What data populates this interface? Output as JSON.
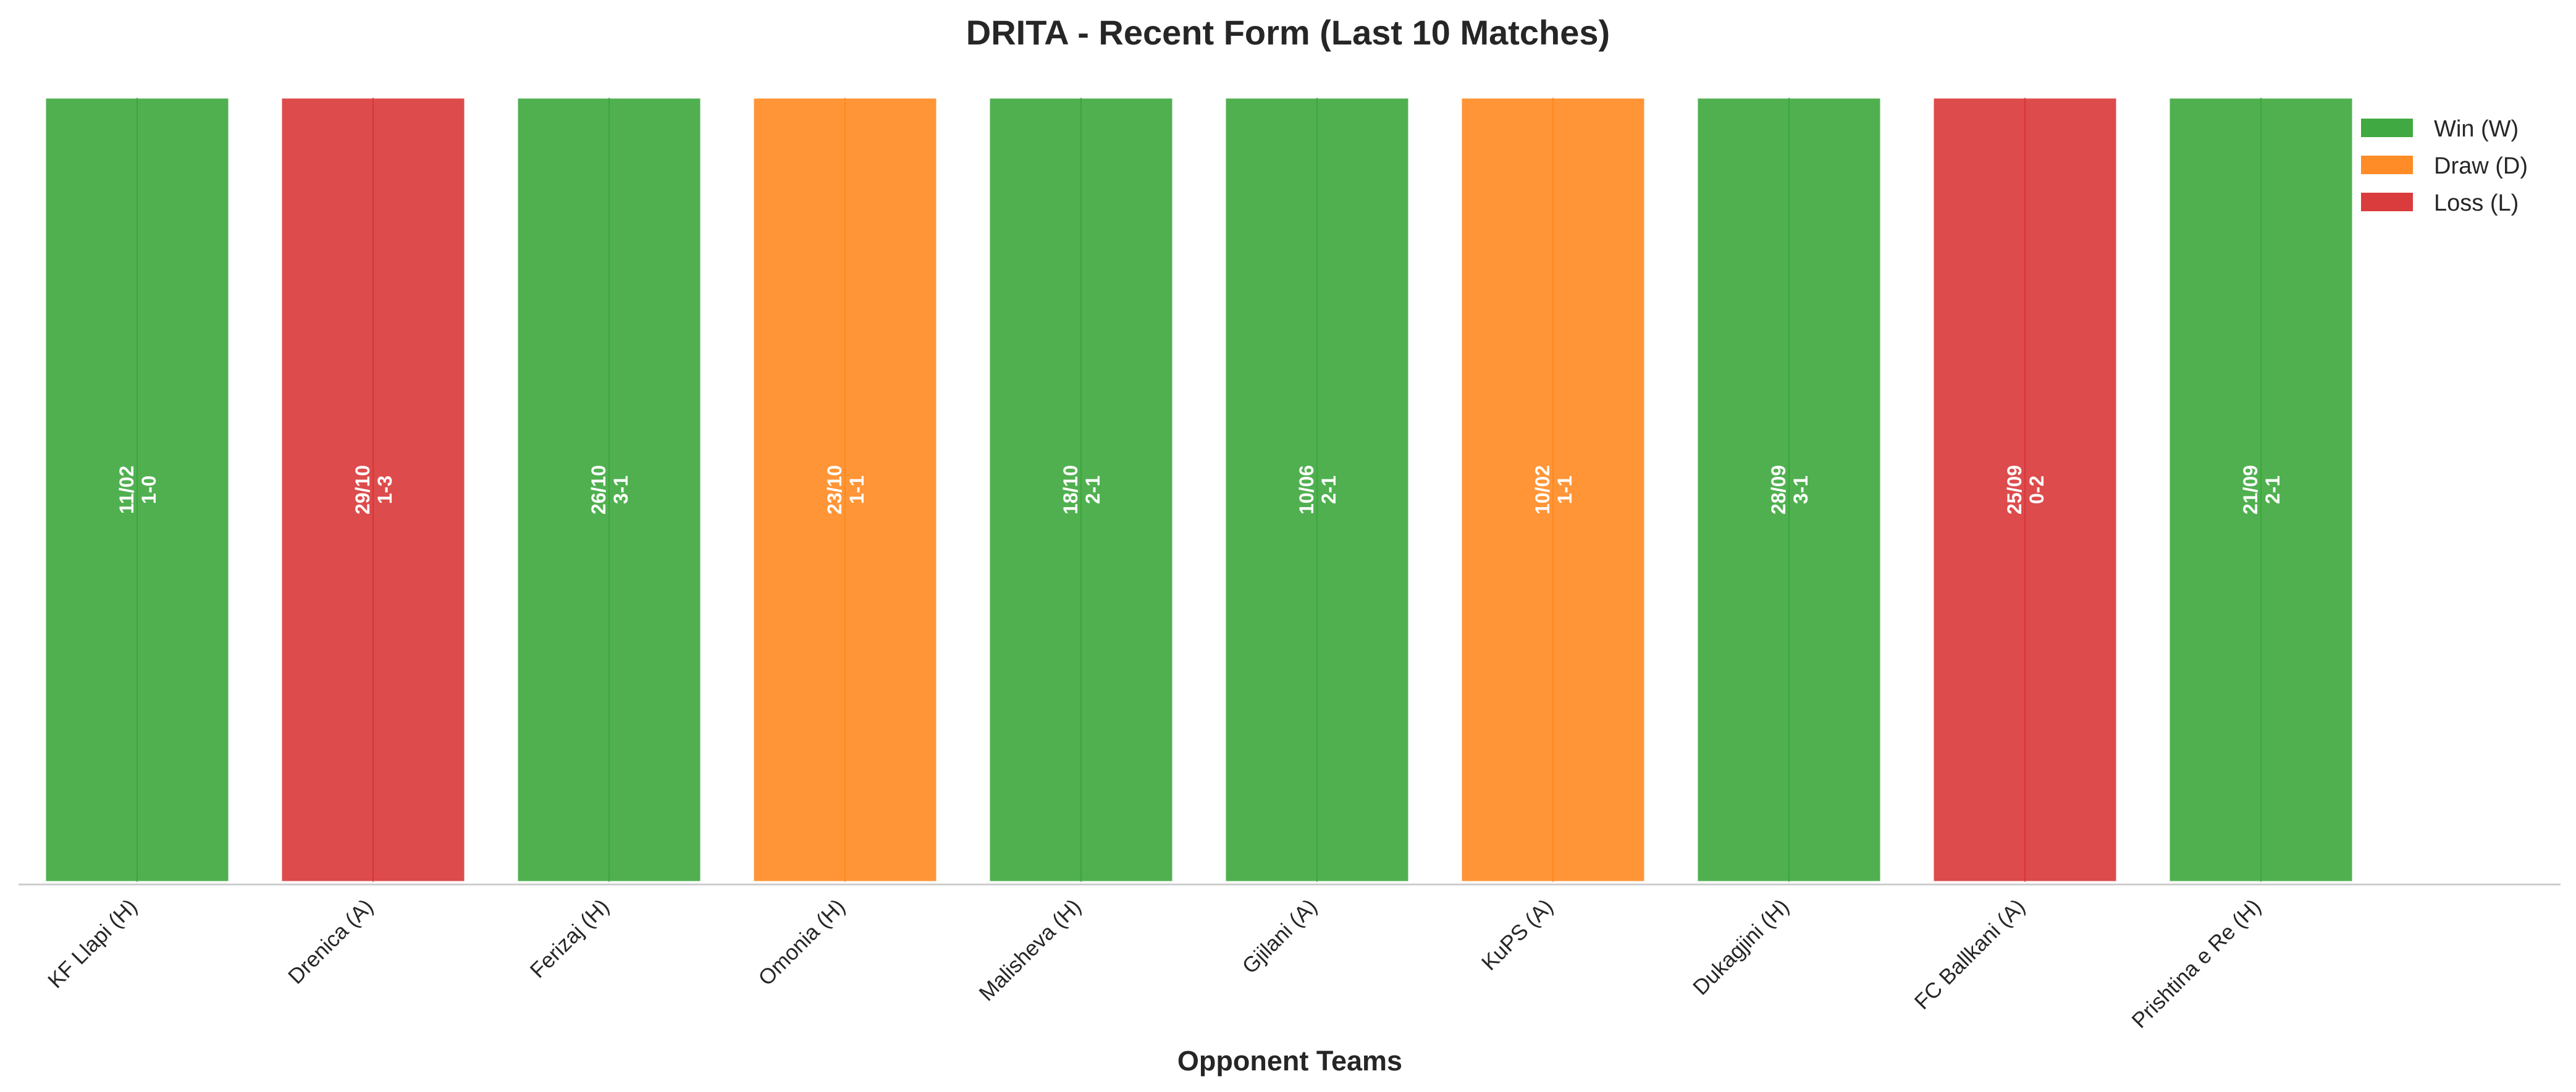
{
  "chart_data": {
    "type": "bar",
    "title": "DRITA - Recent Form (Last 10 Matches)",
    "xlabel": "Opponent Teams",
    "ylabel": "",
    "categories": [
      "KF Llapi (H)",
      "Drenica (A)",
      "Ferizaj (H)",
      "Omonia (H)",
      "Malisheva (H)",
      "Gjilani (A)",
      "KuPS (A)",
      "Dukagjini (H)",
      "FC Ballkani (A)",
      "Prishtina e Re (H)"
    ],
    "results": [
      "W",
      "L",
      "W",
      "D",
      "W",
      "W",
      "D",
      "W",
      "L",
      "W"
    ],
    "dates": [
      "11/02",
      "29/10",
      "26/10",
      "23/10",
      "18/10",
      "10/06",
      "10/02",
      "28/09",
      "25/09",
      "21/09"
    ],
    "scores": [
      "1-0",
      "1-3",
      "3-1",
      "1-1",
      "2-1",
      "2-1",
      "1-1",
      "3-1",
      "0-2",
      "2-1"
    ],
    "values": [
      1,
      1,
      1,
      1,
      1,
      1,
      1,
      1,
      1,
      1
    ],
    "ylim": [
      0,
      1
    ],
    "grid": false,
    "legend": {
      "placement": "top-right",
      "entries": [
        {
          "key": "W",
          "label": "Win (W)",
          "color": "#2ca02c"
        },
        {
          "key": "D",
          "label": "Draw (D)",
          "color": "#ff7f0e"
        },
        {
          "key": "L",
          "label": "Loss (L)",
          "color": "#d62728"
        }
      ]
    }
  }
}
